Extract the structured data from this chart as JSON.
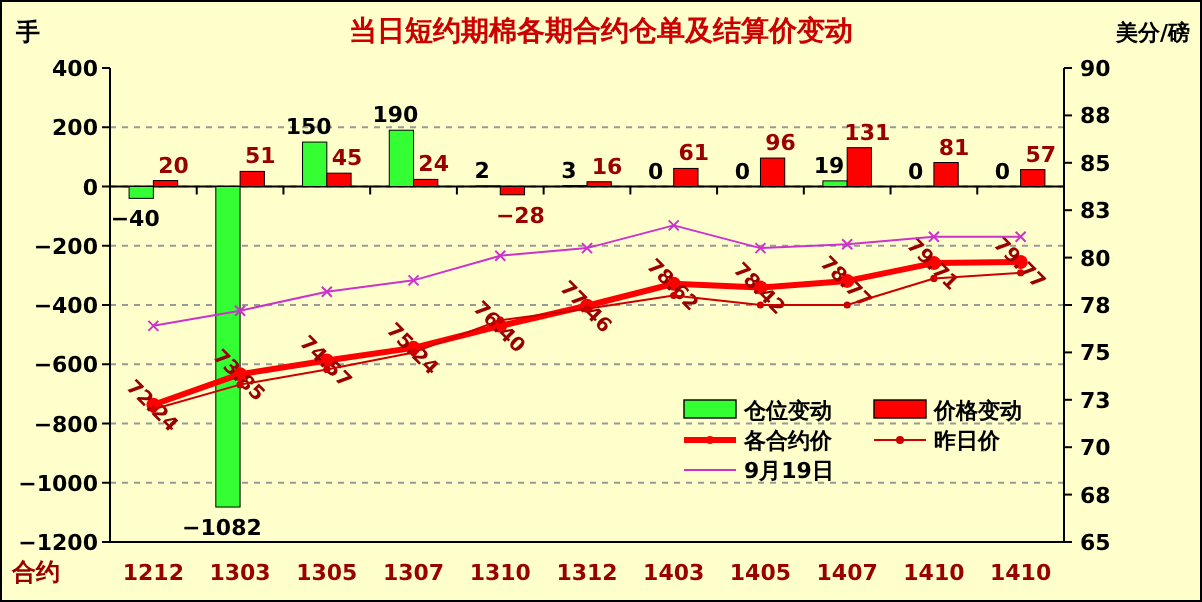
{
  "chart_data": {
    "type": "bar",
    "title": "当日短约期棉各期合约仓单及结算价变动",
    "ylabel": "手",
    "y2label": "美分/磅",
    "xlabel": "合约",
    "categories": [
      "1212",
      "1303",
      "1305",
      "1307",
      "1310",
      "1312",
      "1403",
      "1405",
      "1407",
      "1410",
      "1410"
    ],
    "series": [
      {
        "name": "仓位变动",
        "color": "#33ff33",
        "data_labels": true,
        "values": [
          -40,
          -1082,
          150,
          190,
          2,
          3,
          0,
          0,
          19,
          0,
          0
        ]
      },
      {
        "name": "价格变动",
        "color": "#ff0000",
        "data_labels": true,
        "values": [
          20,
          51,
          45,
          24,
          -28,
          16,
          61,
          96,
          131,
          81,
          57
        ]
      },
      {
        "name": "各合约价",
        "type": "line",
        "axis": "y2",
        "color": "#ff0000",
        "marker": "circle",
        "values": [
          72.24,
          73.85,
          74.57,
          75.24,
          76.4,
          77.46,
          78.62,
          78.42,
          78.77,
          79.71,
          79.77
        ],
        "value_labels": [
          "72.24",
          "73.85",
          "74.57",
          "75.24",
          "76.40",
          "77.46",
          "78.62",
          "78.42",
          "78.77",
          "79.71",
          "79.77"
        ]
      },
      {
        "name": "昨日价",
        "type": "line",
        "axis": "y2",
        "color": "#cc0000",
        "marker": "circle",
        "values": [
          72.0,
          73.3,
          74.1,
          75.0,
          76.7,
          77.3,
          78.0,
          77.5,
          77.5,
          78.9,
          79.2
        ]
      },
      {
        "name": "9月19日",
        "type": "line",
        "axis": "y2",
        "color": "#cc33cc",
        "marker": "cross",
        "values": [
          76.4,
          77.2,
          78.2,
          78.8,
          80.1,
          80.5,
          81.7,
          80.5,
          80.7,
          81.1,
          81.1
        ]
      }
    ],
    "ylim": [
      -1200,
      400
    ],
    "yticks": [
      -1200,
      -1000,
      -800,
      -600,
      -400,
      -200,
      0,
      200,
      400
    ],
    "y2lim": [
      65,
      90
    ],
    "y2ticks": [
      65,
      {
        "value": 67.5,
        "label": "68"
      },
      70,
      {
        "value": 72.5,
        "label": "73"
      },
      75,
      {
        "value": 77.5,
        "label": "78"
      },
      80,
      {
        "value": 82.5,
        "label": "83"
      },
      85,
      {
        "value": 87.5,
        "label": "88"
      },
      90
    ],
    "grid": "y",
    "legend": "bottom right"
  }
}
